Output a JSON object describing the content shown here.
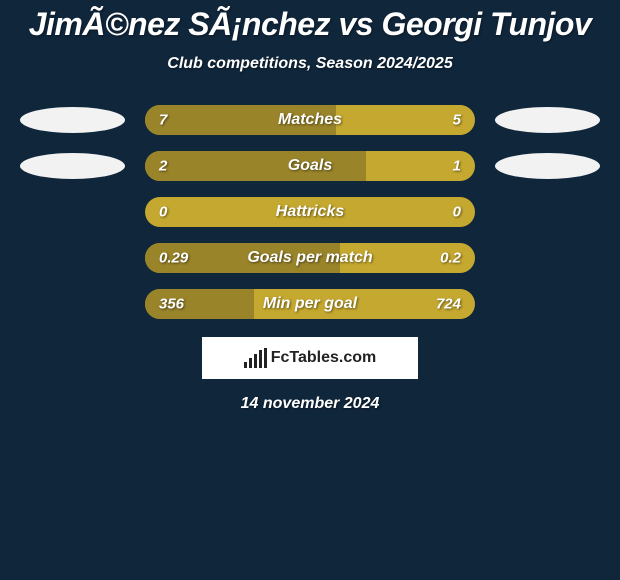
{
  "title": "JimÃ©nez SÃ¡nchez vs Georgi Tunjov",
  "subtitle": "Club competitions, Season 2024/2025",
  "brand": "FcTables.com",
  "date": "14 november 2024",
  "colors": {
    "background": "#10263b",
    "bar_base": "#c5a82f",
    "bar_fill": "#99842a",
    "ellipse": "#f2f2f2",
    "text": "#ffffff"
  },
  "stats": [
    {
      "label": "Matches",
      "left_value": "7",
      "right_value": "5",
      "left_pct": 58,
      "right_pct": 42,
      "show_ellipses": true
    },
    {
      "label": "Goals",
      "left_value": "2",
      "right_value": "1",
      "left_pct": 67,
      "right_pct": 33,
      "show_ellipses": true
    },
    {
      "label": "Hattricks",
      "left_value": "0",
      "right_value": "0",
      "left_pct": 0,
      "right_pct": 0,
      "show_ellipses": false
    },
    {
      "label": "Goals per match",
      "left_value": "0.29",
      "right_value": "0.2",
      "left_pct": 59,
      "right_pct": 41,
      "show_ellipses": false
    },
    {
      "label": "Min per goal",
      "left_value": "356",
      "right_value": "724",
      "left_pct": 33,
      "right_pct": 67,
      "show_ellipses": false
    }
  ]
}
